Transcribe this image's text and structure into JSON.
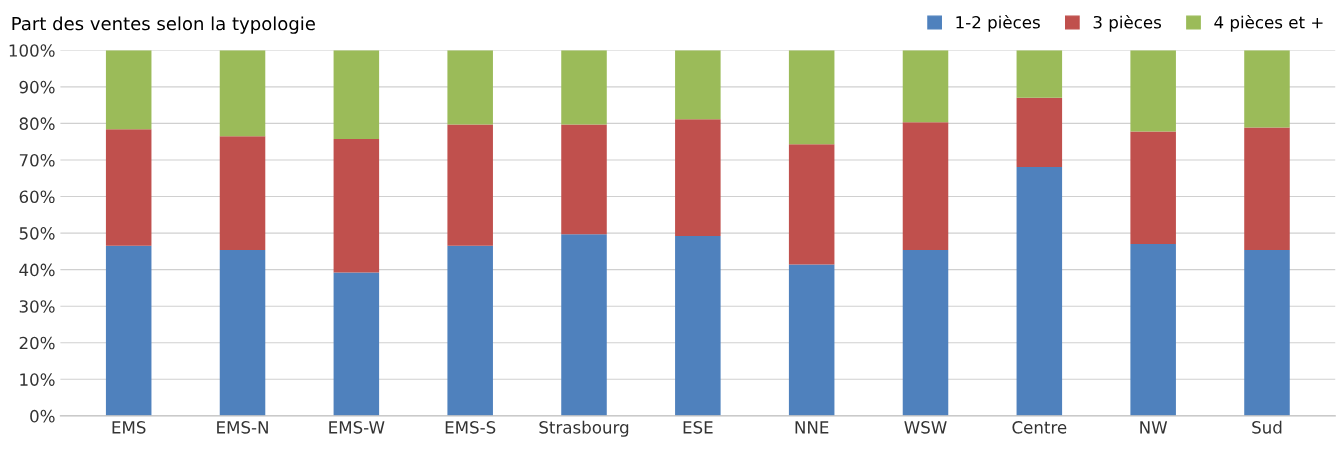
{
  "chart_data": {
    "type": "bar",
    "stacked": true,
    "title": "Part des ventes selon la typologie",
    "categories": [
      "EMS",
      "EMS-N",
      "EMS-W",
      "EMS-S",
      "Strasbourg",
      "ESE",
      "NNE",
      "WSW",
      "Centre",
      "NW",
      "Sud"
    ],
    "series": [
      {
        "name": "1-2 pièces",
        "color": "#4f81bd",
        "values": [
          46.5,
          45.4,
          39.2,
          46.5,
          49.7,
          49.2,
          41.4,
          45.4,
          68.1,
          47.0,
          45.4
        ]
      },
      {
        "name": "3 pièces",
        "color": "#c0504d",
        "values": [
          31.9,
          31.1,
          36.5,
          33.2,
          30.0,
          31.9,
          32.9,
          34.9,
          18.9,
          30.8,
          33.5
        ]
      },
      {
        "name": "4 pièces et +",
        "color": "#9bbb59",
        "values": [
          21.6,
          23.5,
          24.3,
          20.3,
          20.3,
          18.9,
          25.7,
          19.7,
          13.0,
          22.2,
          21.1
        ]
      }
    ],
    "ylim": [
      0,
      100
    ],
    "yticks": [
      {
        "value": 0,
        "label": "0%"
      },
      {
        "value": 10,
        "label": "10%"
      },
      {
        "value": 20,
        "label": "20%"
      },
      {
        "value": 30,
        "label": "30%"
      },
      {
        "value": 40,
        "label": "40%"
      },
      {
        "value": 50,
        "label": "50%"
      },
      {
        "value": 60,
        "label": "60%"
      },
      {
        "value": 70,
        "label": "70%"
      },
      {
        "value": 80,
        "label": "80%"
      },
      {
        "value": 90,
        "label": "90%"
      },
      {
        "value": 100,
        "label": "100%"
      }
    ],
    "grid": "y",
    "legend": "top right"
  }
}
